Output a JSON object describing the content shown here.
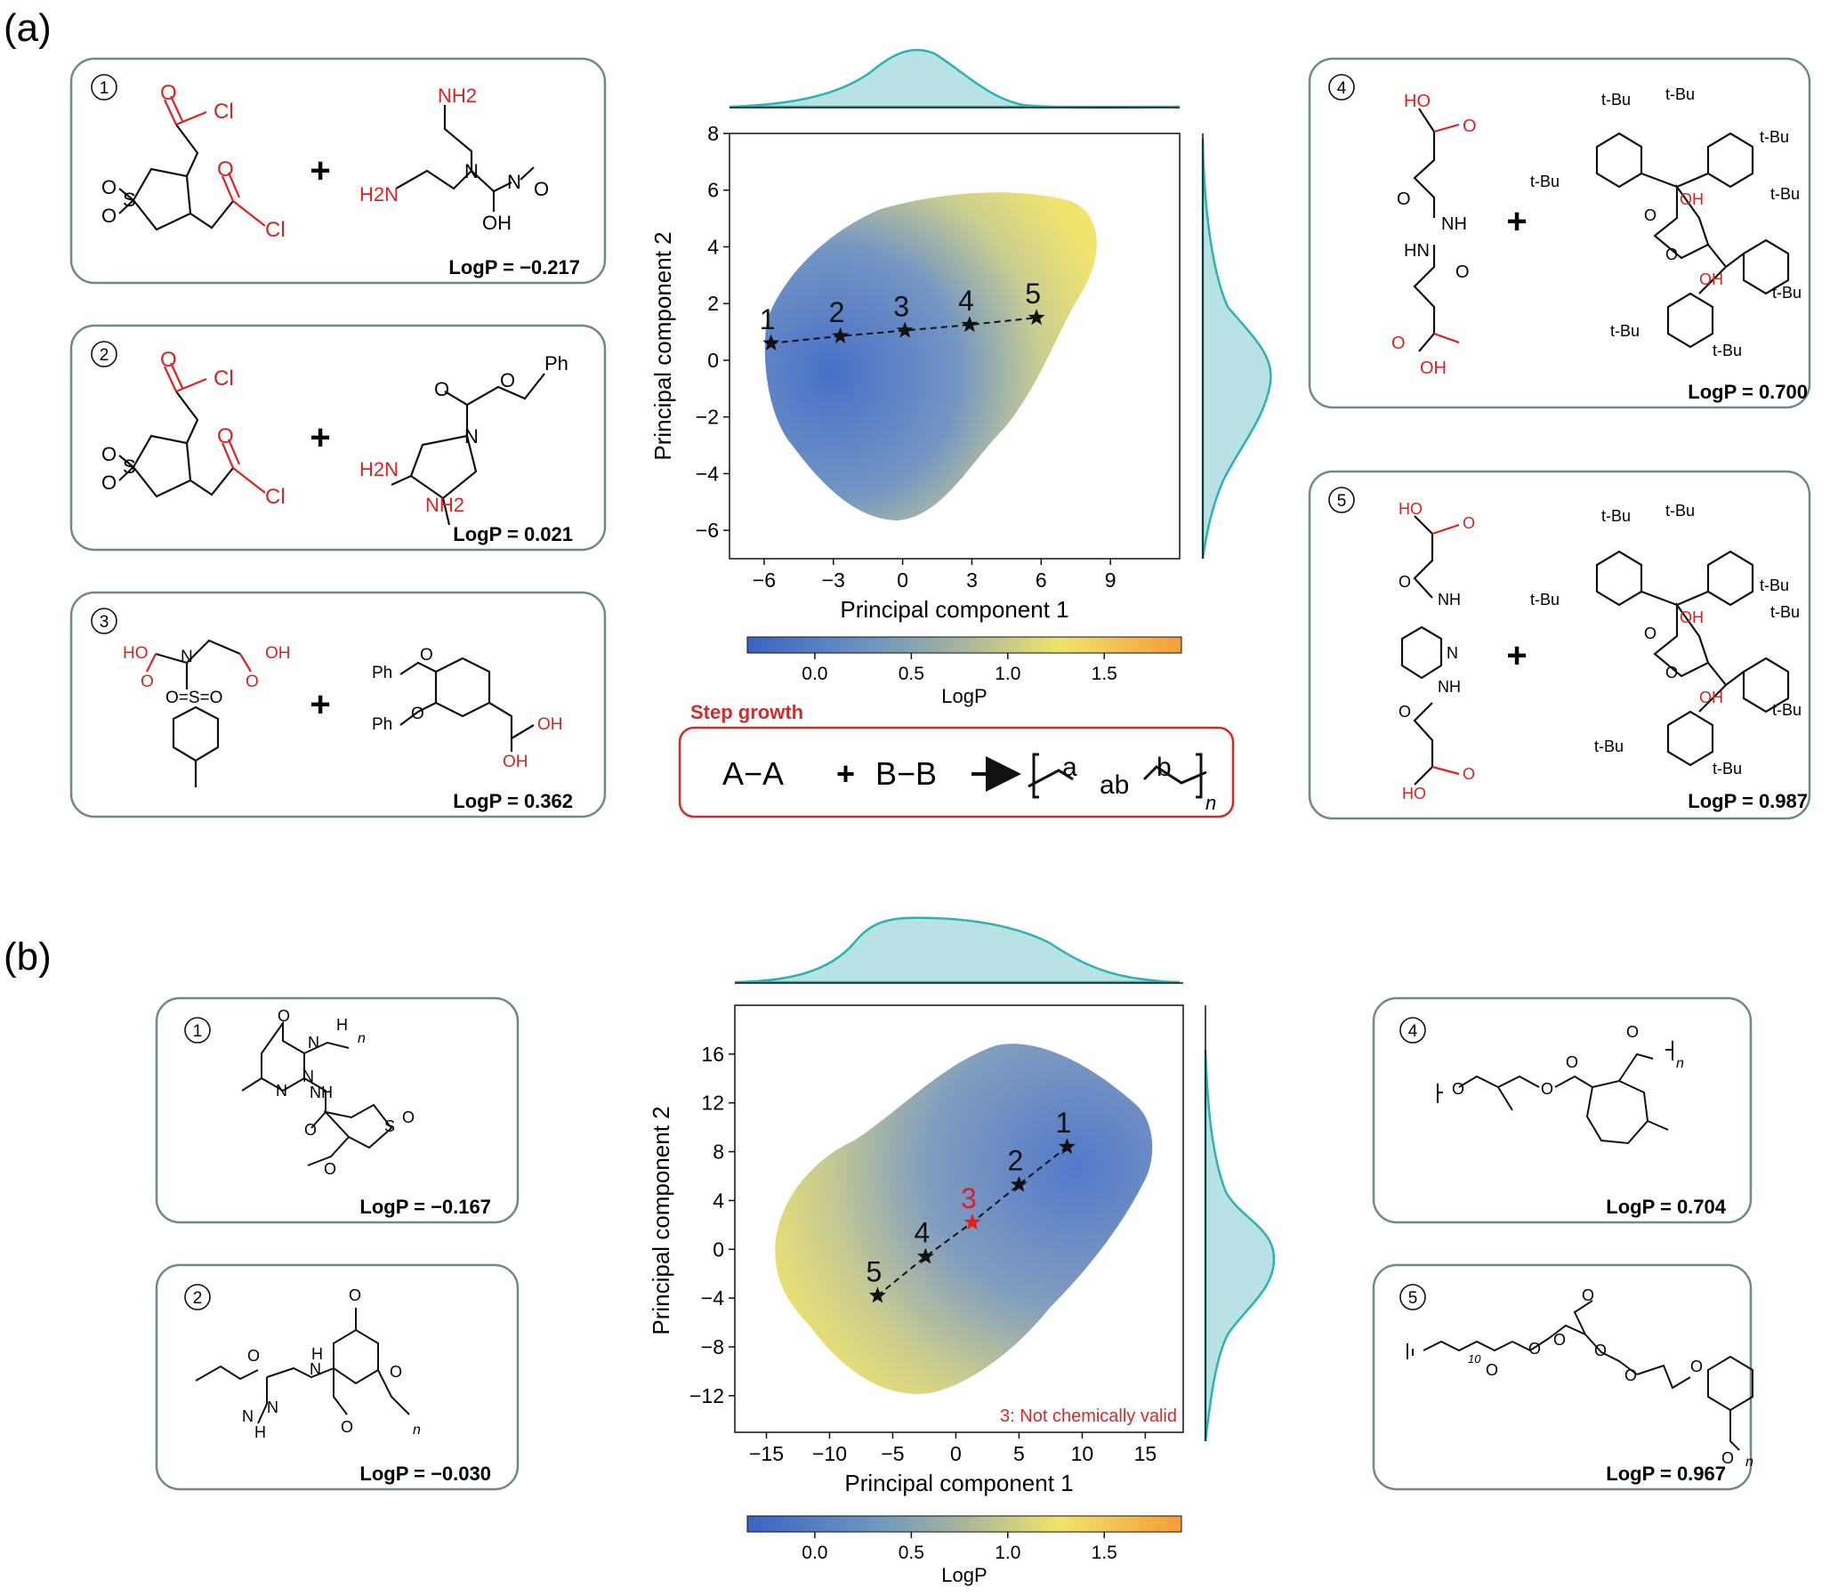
{
  "panel_a": {
    "label": "(a)",
    "boxes": [
      {
        "num": "1",
        "logp": "LogP = −0.217",
        "reactant_a": {
          "red": [
            "O",
            "Cl",
            "O",
            "Cl"
          ],
          "black": [
            "O",
            "S",
            "O"
          ]
        },
        "reactant_b": {
          "red": [
            "NH2",
            "H2N"
          ],
          "black": [
            "N",
            "N",
            "O",
            "OH"
          ]
        }
      },
      {
        "num": "2",
        "logp": "LogP = 0.021",
        "reactant_a": {
          "red": [
            "O",
            "Cl",
            "O",
            "Cl"
          ],
          "black": [
            "O",
            "S",
            "O"
          ]
        },
        "reactant_b": {
          "red": [
            "H2N",
            "NH2"
          ],
          "black": [
            "O",
            "O",
            "Ph",
            "N"
          ]
        }
      },
      {
        "num": "3",
        "logp": "LogP = 0.362",
        "reactant_a": {
          "red": [
            "HO",
            "O",
            "O",
            "OH"
          ],
          "black": [
            "N",
            "O=S=O"
          ]
        },
        "reactant_b": {
          "red": [
            "OH",
            "OH"
          ],
          "black": [
            "Ph",
            "O",
            "Ph",
            "O"
          ]
        }
      },
      {
        "num": "4",
        "logp": "LogP = 0.700",
        "reactant_a": {
          "red": [
            "HO",
            "O",
            "O",
            "OH"
          ],
          "black": [
            "O",
            "NH",
            "HN",
            "O"
          ]
        },
        "reactant_b": {
          "red": [
            "OH",
            "OH"
          ],
          "black": [
            "t-Bu",
            "t-Bu",
            "t-Bu",
            "t-Bu",
            "t-Bu",
            "t-Bu",
            "t-Bu",
            "t-Bu",
            "O",
            "O"
          ]
        }
      },
      {
        "num": "5",
        "logp": "LogP = 0.987",
        "reactant_a": {
          "red": [
            "HO",
            "O",
            "O",
            "HO"
          ],
          "black": [
            "O",
            "NH",
            "N",
            "NH",
            "O"
          ]
        },
        "reactant_b": {
          "red": [
            "OH",
            "OH"
          ],
          "black": [
            "t-Bu",
            "t-Bu",
            "t-Bu",
            "t-Bu",
            "t-Bu",
            "t-Bu",
            "t-Bu",
            "t-Bu",
            "O",
            "O"
          ]
        }
      }
    ],
    "plus": "+",
    "scheme": {
      "title": "Step growth",
      "a_a": "A−A",
      "plus": "+",
      "b_b": "B−B",
      "arrow": "→",
      "product": {
        "a": "a",
        "ab": "ab",
        "b": "b",
        "n": "n"
      }
    }
  },
  "panel_b": {
    "label": "(b)",
    "boxes": [
      {
        "num": "1",
        "logp": "LogP = −0.167",
        "atoms": [
          "O",
          "N",
          "H",
          "n",
          "N",
          "N",
          "NH",
          "O",
          "S",
          "O",
          "O"
        ]
      },
      {
        "num": "2",
        "logp": "LogP = −0.030",
        "atoms": [
          "O",
          "H",
          "N",
          "N",
          "N",
          "H",
          "O",
          "O",
          "O",
          "n"
        ]
      },
      {
        "num": "4",
        "logp": "LogP = 0.704",
        "atoms": [
          "O",
          "O",
          "O",
          "O",
          "n"
        ]
      },
      {
        "num": "5",
        "logp": "LogP = 0.967",
        "atoms": [
          "O",
          "10",
          "O",
          "O",
          "O",
          "O",
          "O",
          "O",
          "O",
          "n"
        ]
      }
    ],
    "invalid_note": "3: Not chemically valid"
  },
  "colors": {
    "red": "#e02020",
    "box_border": "#6f8a80",
    "scheme_border": "#d42a2a",
    "kde_fill": "#b8e2e4",
    "kde_line": "#2bb3b3",
    "cmap": [
      "#3b62c4",
      "#6f97c0",
      "#a9b59a",
      "#f0e46a",
      "#f59b3a"
    ]
  },
  "chart_data": [
    {
      "type": "scatter",
      "panel": "a",
      "xlabel": "Principal component 1",
      "ylabel": "Principal component 2",
      "xlim": [
        -7.5,
        12
      ],
      "ylim": [
        -7,
        8
      ],
      "xticks": [
        -6,
        -3,
        0,
        3,
        6,
        9
      ],
      "yticks": [
        -6,
        -4,
        -2,
        0,
        2,
        4,
        6,
        8
      ],
      "path_points": [
        {
          "label": "1",
          "x": -5.7,
          "y": 0.6
        },
        {
          "label": "2",
          "x": -2.7,
          "y": 0.85
        },
        {
          "label": "3",
          "x": 0.1,
          "y": 1.05
        },
        {
          "label": "4",
          "x": 2.9,
          "y": 1.25
        },
        {
          "label": "5",
          "x": 5.8,
          "y": 1.5
        }
      ],
      "colorbar": {
        "label": "LogP",
        "ticks": [
          0.0,
          0.5,
          1.0,
          1.5
        ],
        "tick_labels": [
          "0.0",
          "0.5",
          "1.0",
          "1.5"
        ],
        "range": [
          -0.35,
          1.9
        ]
      },
      "marginals": {
        "x_kde_mode": 0.5,
        "y_kde_mode": -0.3
      }
    },
    {
      "type": "scatter",
      "panel": "b",
      "xlabel": "Principal component 1",
      "ylabel": "Principal component 2",
      "xlim": [
        -17.5,
        18
      ],
      "ylim": [
        -15,
        20
      ],
      "xticks": [
        -15,
        -10,
        -5,
        0,
        5,
        10,
        15
      ],
      "yticks": [
        -12,
        -8,
        -4,
        0,
        4,
        8,
        12,
        16
      ],
      "path_points": [
        {
          "label": "1",
          "x": 8.8,
          "y": 8.4,
          "valid": true
        },
        {
          "label": "2",
          "x": 5.0,
          "y": 5.3,
          "valid": true
        },
        {
          "label": "3",
          "x": 1.3,
          "y": 2.2,
          "valid": false
        },
        {
          "label": "4",
          "x": -2.4,
          "y": -0.6,
          "valid": true
        },
        {
          "label": "5",
          "x": -6.2,
          "y": -3.8,
          "valid": true
        }
      ],
      "colorbar": {
        "label": "LogP",
        "ticks": [
          0.0,
          0.5,
          1.0,
          1.5
        ],
        "tick_labels": [
          "0.0",
          "0.5",
          "1.0",
          "1.5"
        ],
        "range": [
          -0.35,
          1.9
        ]
      },
      "marginals": {
        "x_kde_mode": -3.0,
        "y_kde_mode": 0.0
      }
    }
  ]
}
